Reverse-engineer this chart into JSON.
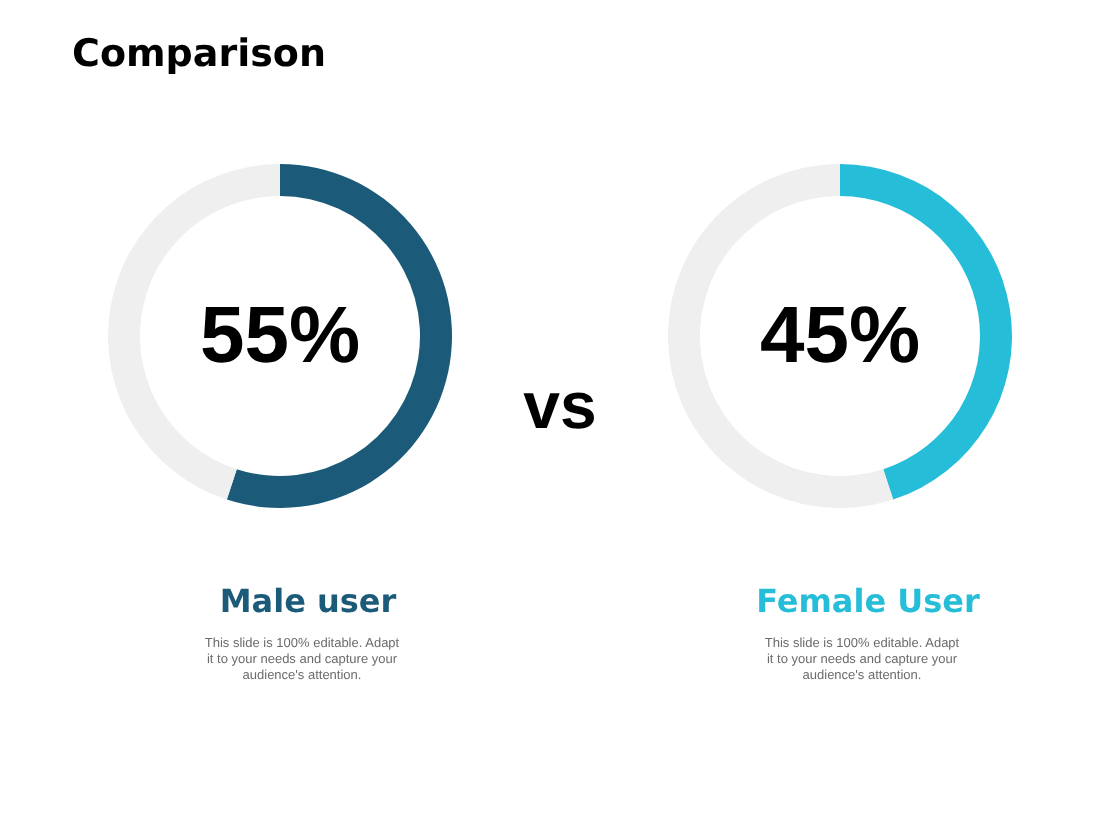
{
  "chart_data": [
    {
      "type": "other",
      "title": "Comparison",
      "annotations": [
        "vs"
      ]
    },
    {
      "type": "donut",
      "title": "Male user",
      "categories": [
        null,
        null
      ],
      "values": [
        55,
        45
      ],
      "colors": [
        "#1b5b79",
        "#efefef"
      ],
      "annotations": [
        "55%",
        "This slide is 100% editable. Adapt it to your needs and capture your audience's attention."
      ]
    },
    {
      "type": "donut",
      "title": "Female User",
      "categories": [
        null,
        null
      ],
      "values": [
        45,
        55
      ],
      "colors": [
        "#26bdd9",
        "#efefef"
      ],
      "annotations": [
        "45%",
        "This slide is 100% editable. Adapt it to your needs and capture your audience's attention."
      ]
    }
  ]
}
